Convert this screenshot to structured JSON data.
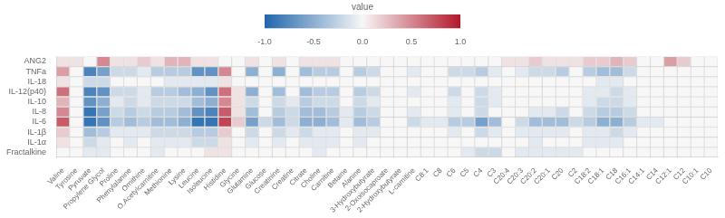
{
  "chart_data": {
    "type": "heatmap",
    "rows": [
      "ANG2",
      "TNFa",
      "IL-18",
      "IL-12(p40)",
      "IL-10",
      "IL-8",
      "IL-6",
      "IL-1β",
      "IL-1α",
      "Fractalkine"
    ],
    "categories": [
      "Valine",
      "Tyrosine",
      "Pyruvate",
      "Propylene Glycol",
      "Proline",
      "Phenylalanine",
      "Ornithine",
      "O.Acetylcarnitine",
      "Methionine",
      "Lysine",
      "Leucine",
      "Isoleucine",
      "Histidine",
      "Glycine",
      "Glutamine",
      "Glucose",
      "Creatinine",
      "Creatine",
      "Citrate",
      "Choline",
      "Carnitine",
      "Betaine",
      "Alanine",
      "3-Hydroxybutyrate",
      "2-Oxoisocaproate",
      "2-Hydroxybutyrate",
      "L-carnitine",
      "C8:1",
      "C8",
      "C6",
      "C5",
      "C4",
      "C3",
      "C20:4",
      "C20:3",
      "C20:2",
      "C20:1",
      "C20",
      "C2",
      "C18:2",
      "C18:1",
      "C18",
      "C16:1",
      "C14:1",
      "C14",
      "C12:1",
      "C12",
      "C10:1",
      "C10"
    ],
    "values": [
      [
        0.1,
        0.1,
        0.0,
        0.5,
        0.1,
        0.1,
        0.2,
        0.1,
        0.3,
        0.3,
        0.1,
        0.1,
        0.0,
        0.0,
        0.1,
        0.0,
        0.1,
        0.0,
        0.1,
        0.1,
        0.1,
        0.0,
        0.0,
        0.0,
        0.0,
        0.0,
        0.0,
        0.0,
        0.0,
        0.0,
        0.0,
        0.0,
        0.0,
        0.1,
        0.1,
        0.2,
        0.1,
        0.1,
        0.1,
        0.2,
        0.2,
        0.3,
        0.2,
        0.0,
        0.0,
        0.4,
        0.2,
        0.0,
        0.0
      ],
      [
        0.4,
        0.0,
        -0.8,
        -0.6,
        -0.2,
        -0.2,
        -0.1,
        -0.3,
        -0.3,
        -0.3,
        -0.7,
        -0.7,
        0.5,
        0.0,
        -0.5,
        0.0,
        -0.5,
        0.0,
        -0.4,
        -0.3,
        -0.3,
        0.0,
        -0.3,
        -0.2,
        0.0,
        0.0,
        -0.1,
        0.0,
        0.0,
        -0.2,
        -0.2,
        -0.3,
        -0.1,
        0.0,
        -0.1,
        -0.2,
        -0.2,
        -0.3,
        0.0,
        -0.3,
        -0.4,
        -0.4,
        -0.2,
        0.0,
        0.0,
        0.0,
        0.0,
        0.0,
        0.0
      ],
      [
        0.1,
        0.0,
        -0.2,
        -0.2,
        0.0,
        0.0,
        0.0,
        0.0,
        -0.1,
        -0.1,
        -0.1,
        -0.1,
        0.1,
        0.0,
        0.0,
        0.0,
        0.0,
        0.0,
        0.0,
        0.0,
        0.0,
        0.0,
        0.0,
        0.0,
        0.0,
        0.0,
        0.0,
        0.0,
        0.0,
        0.0,
        0.0,
        0.0,
        0.0,
        0.0,
        0.0,
        0.0,
        0.0,
        0.0,
        0.0,
        0.0,
        -0.1,
        -0.1,
        0.0,
        0.0,
        0.0,
        0.0,
        0.0,
        0.0,
        0.0
      ],
      [
        0.6,
        0.0,
        -0.8,
        -0.7,
        -0.2,
        -0.2,
        -0.1,
        -0.3,
        -0.3,
        -0.4,
        -0.5,
        -0.7,
        0.6,
        0.1,
        -0.5,
        0.0,
        -0.4,
        0.0,
        -0.4,
        -0.3,
        -0.3,
        0.0,
        -0.3,
        -0.2,
        0.0,
        0.0,
        -0.1,
        0.0,
        0.0,
        -0.2,
        0.0,
        -0.2,
        -0.1,
        0.0,
        0.0,
        0.0,
        0.0,
        0.0,
        0.0,
        -0.1,
        -0.1,
        -0.2,
        -0.1,
        0.0,
        0.0,
        0.0,
        0.0,
        0.0,
        0.0
      ],
      [
        0.3,
        0.0,
        -0.7,
        -0.5,
        -0.1,
        -0.2,
        -0.1,
        -0.2,
        -0.2,
        -0.2,
        -0.4,
        -0.5,
        0.5,
        0.1,
        -0.2,
        0.0,
        -0.2,
        -0.1,
        -0.3,
        -0.2,
        -0.2,
        0.0,
        -0.2,
        -0.1,
        0.0,
        0.0,
        0.0,
        0.0,
        0.0,
        -0.1,
        0.0,
        -0.2,
        -0.1,
        0.0,
        0.0,
        0.0,
        0.0,
        0.0,
        0.0,
        -0.1,
        -0.2,
        -0.2,
        -0.1,
        0.0,
        0.0,
        0.0,
        0.0,
        0.0,
        0.0
      ],
      [
        0.5,
        0.0,
        -0.9,
        -0.6,
        -0.2,
        -0.3,
        -0.2,
        -0.3,
        -0.3,
        -0.4,
        -0.7,
        -0.8,
        0.7,
        0.1,
        -0.4,
        0.0,
        -0.3,
        -0.2,
        -0.4,
        -0.4,
        -0.3,
        -0.1,
        -0.3,
        -0.2,
        0.0,
        0.0,
        -0.1,
        0.0,
        0.0,
        -0.1,
        0.0,
        -0.2,
        0.0,
        0.0,
        0.0,
        -0.1,
        -0.1,
        -0.2,
        0.0,
        -0.2,
        -0.3,
        -0.3,
        -0.2,
        0.0,
        0.0,
        0.0,
        0.0,
        0.0,
        0.0
      ],
      [
        0.7,
        0.0,
        -0.9,
        -0.7,
        -0.3,
        -0.4,
        -0.3,
        -0.4,
        -0.4,
        -0.5,
        -0.9,
        -0.9,
        0.8,
        0.2,
        -0.6,
        -0.2,
        -0.4,
        -0.2,
        -0.5,
        -0.5,
        -0.4,
        -0.1,
        -0.4,
        -0.3,
        0.0,
        0.0,
        -0.2,
        -0.1,
        -0.1,
        -0.3,
        -0.3,
        -0.6,
        -0.4,
        0.0,
        -0.2,
        -0.4,
        -0.4,
        -0.4,
        -0.2,
        -0.3,
        -0.5,
        -0.5,
        -0.3,
        -0.1,
        -0.1,
        0.0,
        0.0,
        0.0,
        0.0
      ],
      [
        0.2,
        0.0,
        -0.4,
        -0.3,
        -0.1,
        -0.1,
        -0.1,
        -0.2,
        -0.2,
        -0.2,
        -0.3,
        -0.3,
        0.2,
        0.0,
        -0.2,
        0.0,
        -0.2,
        -0.1,
        -0.2,
        -0.1,
        -0.1,
        0.0,
        -0.1,
        -0.1,
        0.0,
        0.0,
        0.0,
        0.0,
        0.0,
        -0.1,
        0.0,
        -0.2,
        -0.1,
        0.0,
        -0.1,
        -0.1,
        -0.1,
        -0.1,
        0.0,
        -0.1,
        -0.1,
        -0.2,
        -0.1,
        0.0,
        0.0,
        0.0,
        0.0,
        0.0,
        0.0
      ],
      [
        0.1,
        0.0,
        -0.2,
        -0.1,
        0.0,
        -0.1,
        0.0,
        -0.1,
        -0.1,
        -0.1,
        -0.2,
        -0.2,
        0.1,
        0.0,
        -0.1,
        0.0,
        -0.1,
        0.0,
        -0.1,
        -0.1,
        -0.1,
        0.0,
        -0.1,
        0.0,
        0.0,
        0.0,
        0.0,
        0.0,
        0.0,
        0.0,
        0.0,
        0.0,
        0.0,
        0.0,
        0.0,
        -0.1,
        0.0,
        0.0,
        0.0,
        -0.1,
        -0.1,
        -0.1,
        0.0,
        0.0,
        0.0,
        0.0,
        0.0,
        0.0,
        0.0
      ],
      [
        0.0,
        0.0,
        -0.1,
        -0.1,
        0.0,
        0.0,
        0.0,
        -0.1,
        0.0,
        0.0,
        0.0,
        0.1,
        0.1,
        0.0,
        0.0,
        0.0,
        0.0,
        0.0,
        0.0,
        -0.1,
        0.0,
        0.0,
        0.0,
        0.0,
        0.0,
        0.0,
        0.0,
        0.0,
        0.0,
        0.0,
        -0.1,
        -0.2,
        -0.2,
        0.0,
        -0.1,
        -0.1,
        -0.1,
        -0.1,
        -0.1,
        0.0,
        0.0,
        0.0,
        0.0,
        0.0,
        0.0,
        0.0,
        0.0,
        0.0,
        0.0
      ]
    ],
    "colorbar_label": "value",
    "colorbar_range": [
      -1.0,
      1.0
    ],
    "colorbar_ticks": [
      {
        "value": -1.0,
        "label": "-1.0"
      },
      {
        "value": -0.5,
        "label": "-0.5"
      },
      {
        "value": 0.0,
        "label": "0.0"
      },
      {
        "value": 0.5,
        "label": "0.5"
      },
      {
        "value": 1.0,
        "label": "1.0"
      }
    ],
    "colors": [
      "#2166ac",
      "#f7f7f7",
      "#b2182b"
    ],
    "grid": true
  }
}
